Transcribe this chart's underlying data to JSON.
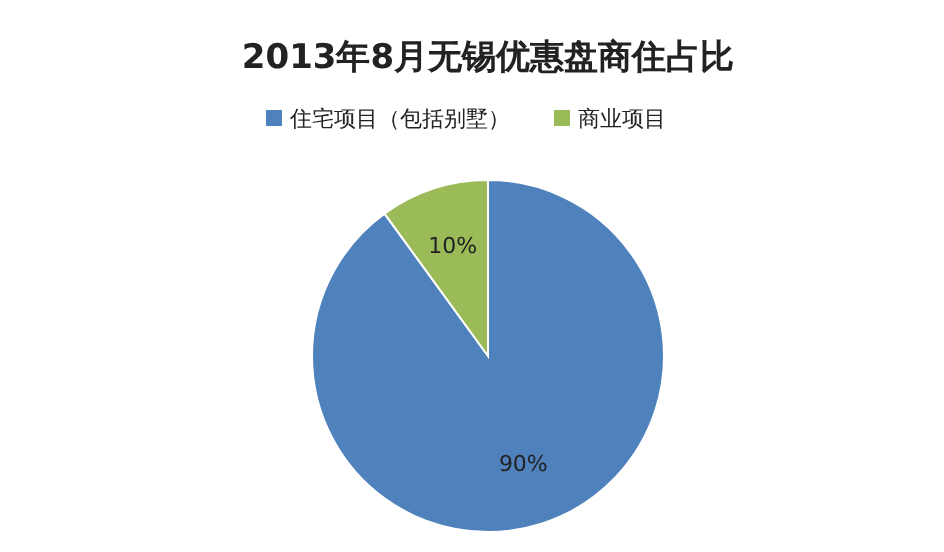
{
  "chart_data": {
    "type": "pie",
    "title": "2013年8月无锡优惠盘商住占比",
    "categories": [
      "住宅项目（包括别墅）",
      "商业项目"
    ],
    "values": [
      90,
      10
    ],
    "colors": [
      "#4f81bd",
      "#9bbb59"
    ],
    "value_labels": [
      "90%",
      "10%"
    ],
    "legend": "top"
  }
}
